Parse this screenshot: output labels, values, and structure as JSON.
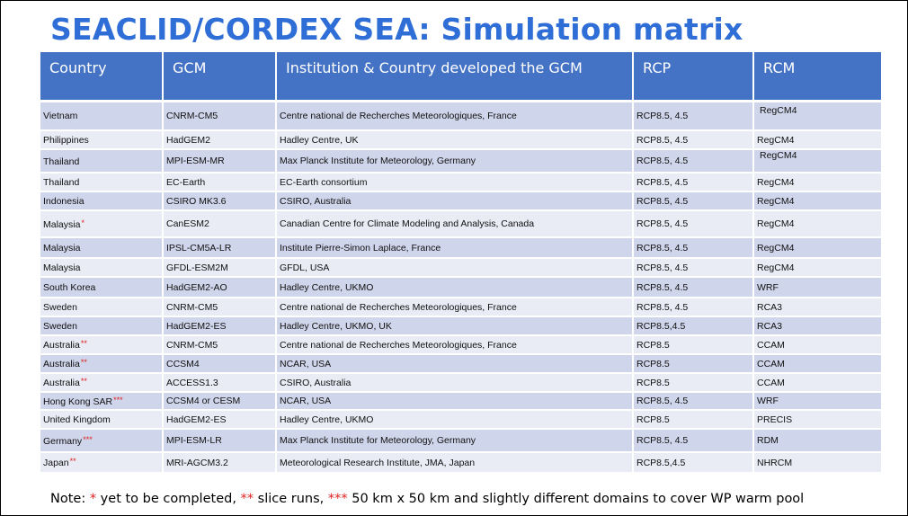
{
  "title": "SEACLID/CORDEX SEA: Simulation matrix",
  "table": {
    "headers": [
      "Country",
      "GCM",
      "Institution & Country developed the GCM",
      "RCP",
      "RCM"
    ],
    "rows": [
      {
        "country": "Vietnam",
        "marker": "",
        "gcm": "CNRM-CM5",
        "institution": "Centre national de Recherches Meteorologiques, France",
        "rcp": "RCP8.5, 4.5",
        "rcm": "RegCM4"
      },
      {
        "country": "Philippines",
        "marker": "",
        "gcm": "HadGEM2",
        "institution": "Hadley Centre, UK",
        "rcp": "RCP8.5, 4.5",
        "rcm": "RegCM4"
      },
      {
        "country": "Thailand",
        "marker": "",
        "gcm": "MPI-ESM-MR",
        "institution": "Max Planck Institute for Meteorology, Germany",
        "rcp": "RCP8.5, 4.5",
        "rcm": "RegCM4"
      },
      {
        "country": "Thailand",
        "marker": "",
        "gcm": "EC-Earth",
        "institution": "EC-Earth consortium",
        "rcp": "RCP8.5, 4.5",
        "rcm": "RegCM4"
      },
      {
        "country": "Indonesia",
        "marker": "",
        "gcm": "CSIRO MK3.6",
        "institution": "CSIRO, Australia",
        "rcp": "RCP8.5, 4.5",
        "rcm": "RegCM4"
      },
      {
        "country": "Malaysia",
        "marker": "*",
        "gcm": "CanESM2",
        "institution": "Canadian Centre for Climate Modeling and Analysis, Canada",
        "rcp": "RCP8.5, 4.5",
        "rcm": "RegCM4"
      },
      {
        "country": "Malaysia",
        "marker": "",
        "gcm": "IPSL-CM5A-LR",
        "institution": "Institute Pierre-Simon Laplace, France",
        "rcp": "RCP8.5, 4.5",
        "rcm": "RegCM4"
      },
      {
        "country": "Malaysia",
        "marker": "",
        "gcm": "GFDL-ESM2M",
        "institution": "GFDL, USA",
        "rcp": "RCP8.5, 4.5",
        "rcm": "RegCM4"
      },
      {
        "country": "South Korea",
        "marker": "",
        "gcm": "HadGEM2-AO",
        "institution": "Hadley Centre, UKMO",
        "rcp": "RCP8.5, 4.5",
        "rcm": "WRF"
      },
      {
        "country": "Sweden",
        "marker": "",
        "gcm": "CNRM-CM5",
        "institution": "Centre national de Recherches Meteorologiques, France",
        "rcp": "RCP8.5, 4.5",
        "rcm": "RCA3"
      },
      {
        "country": "Sweden",
        "marker": "",
        "gcm": "HadGEM2-ES",
        "institution": "Hadley Centre, UKMO, UK",
        "rcp": "RCP8.5,4.5",
        "rcm": "RCA3"
      },
      {
        "country": "Australia",
        "marker": "**",
        "gcm": "CNRM-CM5",
        "institution": "Centre national de Recherches Meteorologiques, France",
        "rcp": "RCP8.5",
        "rcm": "CCAM"
      },
      {
        "country": "Australia",
        "marker": "**",
        "gcm": "CCSM4",
        "institution": "NCAR, USA",
        "rcp": "RCP8.5",
        "rcm": "CCAM"
      },
      {
        "country": "Australia",
        "marker": "**",
        "gcm": "ACCESS1.3",
        "institution": "CSIRO, Australia",
        "rcp": "RCP8.5",
        "rcm": "CCAM"
      },
      {
        "country": "Hong Kong SAR",
        "marker": "***",
        "gcm": "CCSM4 or CESM",
        "institution": "NCAR, USA",
        "rcp": "RCP8.5, 4.5",
        "rcm": "WRF"
      },
      {
        "country": "United Kingdom",
        "marker": "",
        "gcm": "HadGEM2-ES",
        "institution": "Hadley Centre, UKMO",
        "rcp": "RCP8.5",
        "rcm": "PRECIS"
      },
      {
        "country": "Germany",
        "marker": "***",
        "gcm": "MPI-ESM-LR",
        "institution": "Max Planck Institute for Meteorology, Germany",
        "rcp": "RCP8.5, 4.5",
        "rcm": "RDM"
      },
      {
        "country": "Japan",
        "marker": "**",
        "gcm": "MRI-AGCM3.2",
        "institution": "Meteorological Research Institute, JMA, Japan",
        "rcp": "RCP8.5,4.5",
        "rcm": "NHRCM"
      }
    ]
  },
  "note": {
    "prefix": "Note: ",
    "mark1": "*",
    "text1": " yet to be completed, ",
    "mark2": "**",
    "text2": " slice runs, ",
    "mark3": "***",
    "text3": " 50 km x 50 km and slightly different domains to cover WP warm pool"
  },
  "colors": {
    "title": "#2e6ed6",
    "header_bg": "#4472c4",
    "row_odd": "#cfd5ea",
    "row_even": "#e9ebf5",
    "marker": "#e02020"
  }
}
